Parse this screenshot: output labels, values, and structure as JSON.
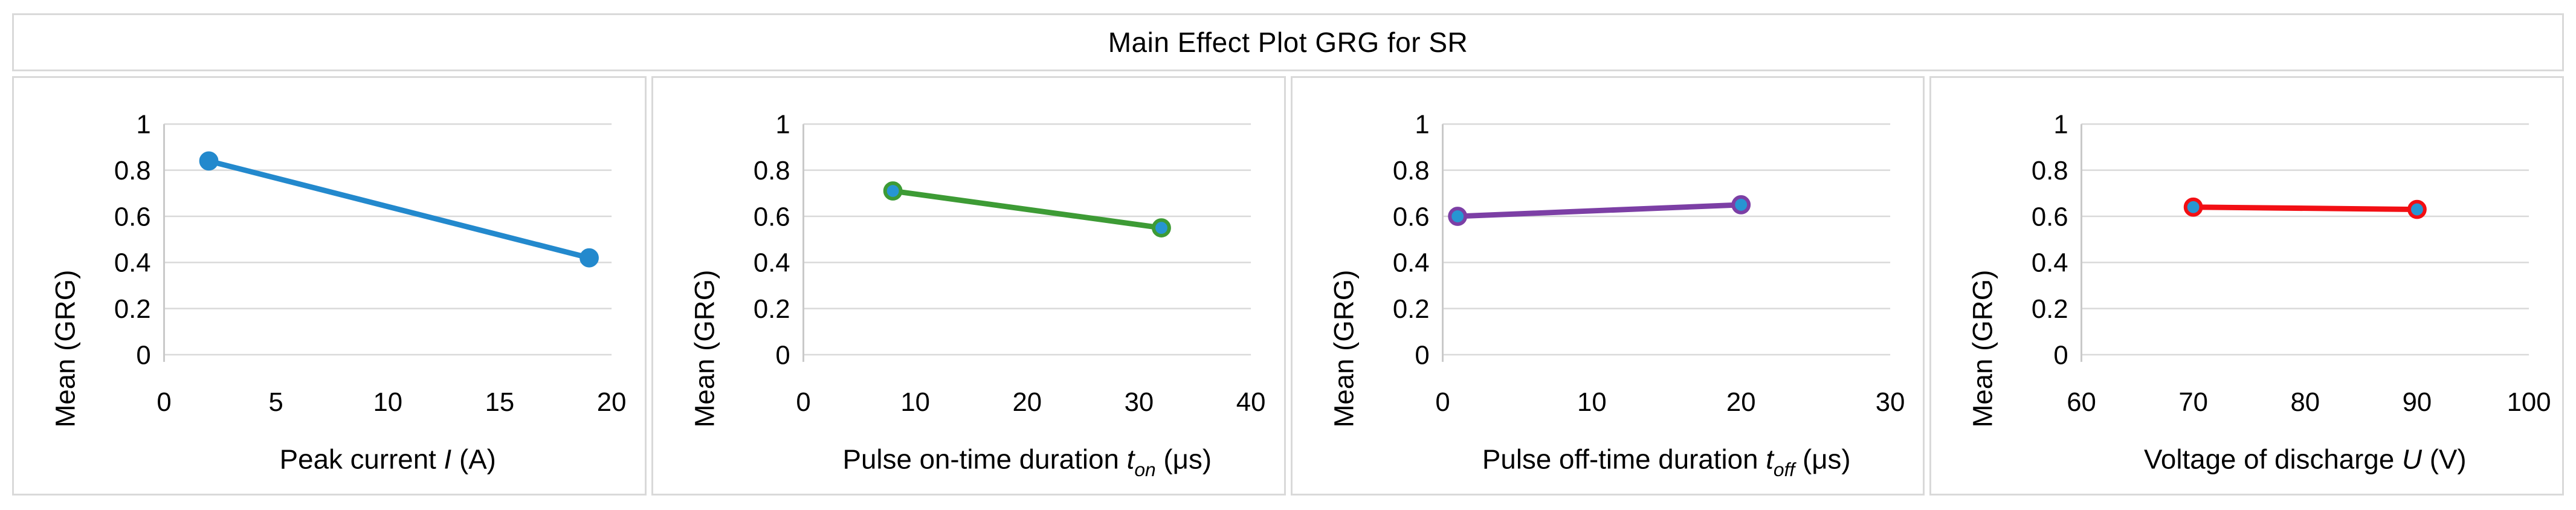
{
  "title": "Main Effect Plot GRG for SR",
  "ylabel": "Mean (GRG)",
  "colors": {
    "grid": "#D9D9D9",
    "axis": "#C9C9C9",
    "border": "#D9D9D9",
    "text": "#000000",
    "marker_fill_blue": "#2795D2"
  },
  "chart_data": [
    {
      "type": "line",
      "name": "peak-current",
      "xlabel_plain": "Peak current I (A)",
      "xlabel_parts": [
        {
          "text": "Peak current "
        },
        {
          "text": "I",
          "italic": true
        },
        {
          "text": " (A)"
        }
      ],
      "ylabel": "Mean (GRG)",
      "x": [
        2,
        19
      ],
      "y": [
        0.84,
        0.42
      ],
      "xlim": [
        0,
        20
      ],
      "xticks": [
        0,
        5,
        10,
        15,
        20
      ],
      "xtick_labels": [
        "0",
        "5",
        "10",
        "15",
        "20"
      ],
      "ylim": [
        0,
        1
      ],
      "yticks": [
        0,
        0.2,
        0.4,
        0.6,
        0.8,
        1
      ],
      "ytick_labels": [
        "0",
        "0.2",
        "0.4",
        "0.6",
        "0.8",
        "1"
      ],
      "line_color": "#2389CD",
      "marker_fill": "#2389CD",
      "grid": true,
      "legend": "none"
    },
    {
      "type": "line",
      "name": "pulse-on-time",
      "xlabel_plain": "Pulse on-time duration t_on (μs)",
      "xlabel_parts": [
        {
          "text": "Pulse on-time duration "
        },
        {
          "text": "t",
          "italic": true
        },
        {
          "text": "on",
          "italic": true,
          "sub": true
        },
        {
          "text": " (μs)"
        }
      ],
      "ylabel": "Mean (GRG)",
      "x": [
        8,
        32
      ],
      "y": [
        0.71,
        0.55
      ],
      "xlim": [
        0,
        40
      ],
      "xticks": [
        0,
        10,
        20,
        30,
        40
      ],
      "xtick_labels": [
        "0",
        "10",
        "20",
        "30",
        "40"
      ],
      "ylim": [
        0,
        1
      ],
      "yticks": [
        0,
        0.2,
        0.4,
        0.6,
        0.8,
        1
      ],
      "ytick_labels": [
        "0",
        "0.2",
        "0.4",
        "0.6",
        "0.8",
        "1"
      ],
      "line_color": "#3D9B35",
      "marker_fill": "#2795D2",
      "grid": true,
      "legend": "none"
    },
    {
      "type": "line",
      "name": "pulse-off-time",
      "xlabel_plain": "Pulse off-time duration t_off (μs)",
      "xlabel_parts": [
        {
          "text": "Pulse off-time duration "
        },
        {
          "text": "t",
          "italic": true
        },
        {
          "text": "off",
          "italic": true,
          "sub": true
        },
        {
          "text": " (μs)"
        }
      ],
      "ylabel": "Mean (GRG)",
      "x": [
        1,
        20
      ],
      "y": [
        0.6,
        0.65
      ],
      "xlim": [
        0,
        30
      ],
      "xticks": [
        0,
        10,
        20,
        30
      ],
      "xtick_labels": [
        "0",
        "10",
        "20",
        "30"
      ],
      "ylim": [
        0,
        1
      ],
      "yticks": [
        0,
        0.2,
        0.4,
        0.6,
        0.8,
        1
      ],
      "ytick_labels": [
        "0",
        "0.2",
        "0.4",
        "0.6",
        "0.8",
        "1"
      ],
      "line_color": "#7C3FA5",
      "marker_fill": "#2795D2",
      "grid": true,
      "legend": "none"
    },
    {
      "type": "line",
      "name": "voltage-discharge",
      "xlabel_plain": "Voltage of discharge U (V)",
      "xlabel_parts": [
        {
          "text": "Voltage of discharge "
        },
        {
          "text": "U",
          "italic": true
        },
        {
          "text": " (V)"
        }
      ],
      "ylabel": "Mean (GRG)",
      "x": [
        70,
        90
      ],
      "y": [
        0.64,
        0.63
      ],
      "xlim": [
        60,
        100
      ],
      "xticks": [
        60,
        70,
        80,
        90,
        100
      ],
      "xtick_labels": [
        "60",
        "70",
        "80",
        "90",
        "100"
      ],
      "ylim": [
        0,
        1
      ],
      "yticks": [
        0,
        0.2,
        0.4,
        0.6,
        0.8,
        1
      ],
      "ytick_labels": [
        "0",
        "0.2",
        "0.4",
        "0.6",
        "0.8",
        "1"
      ],
      "line_color": "#F20F14",
      "marker_fill": "#2795D2",
      "grid": true,
      "legend": "none"
    }
  ]
}
